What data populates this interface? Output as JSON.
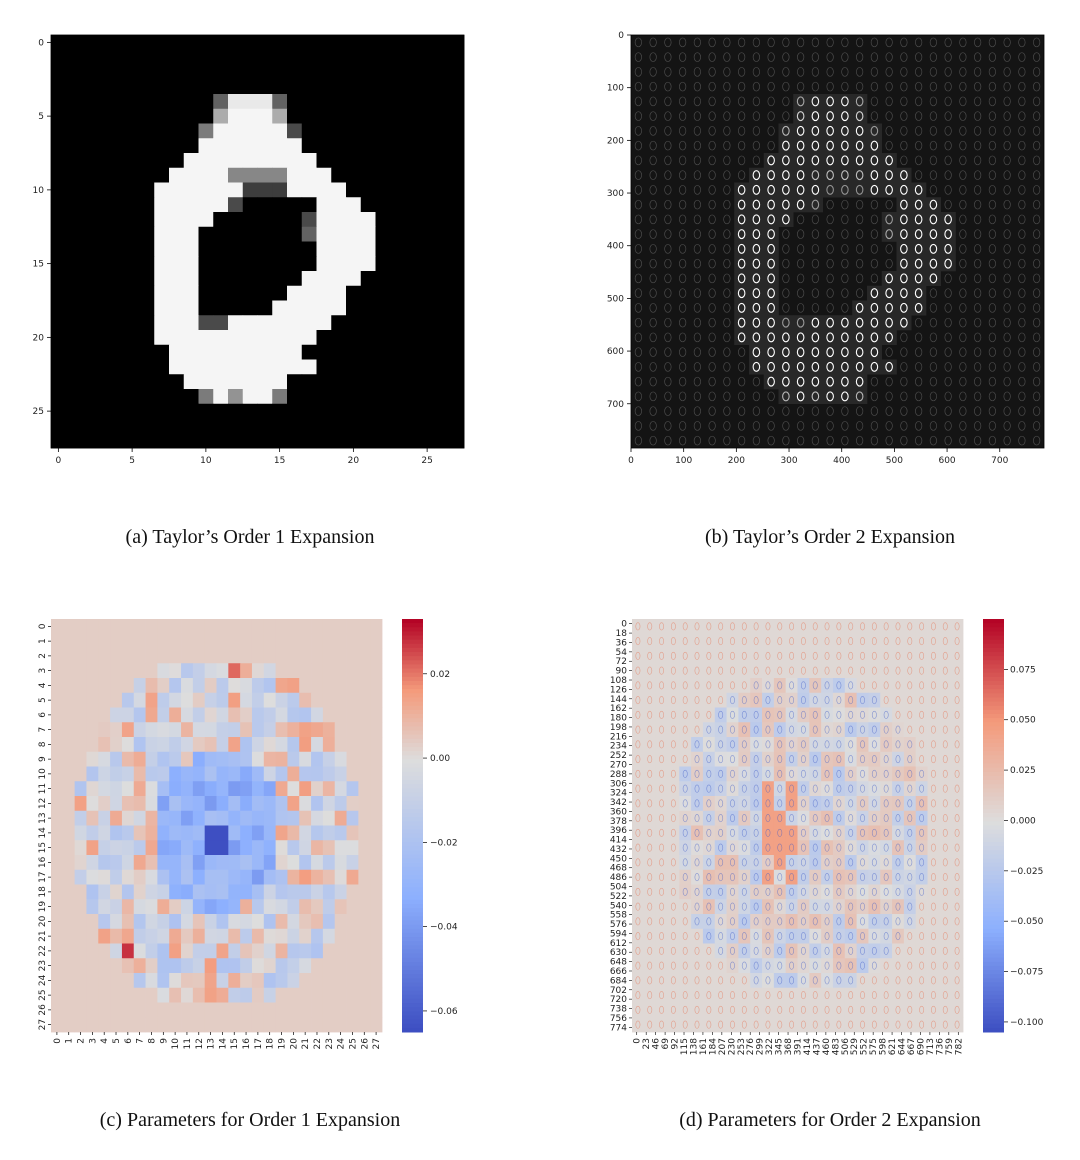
{
  "captions": {
    "a": "(a) Taylor’s Order 1 Expansion",
    "b": "(b) Taylor’s Order 2 Expansion",
    "c": "(c) Parameters for Order 1 Expansion",
    "d": "(d) Parameters for Order 2 Expansion"
  },
  "chart_data": [
    {
      "id": "a",
      "type": "heatmap",
      "colormap": "gray",
      "grid": false,
      "xlim": [
        -0.5,
        27.5
      ],
      "ylim": [
        27.5,
        -0.5
      ],
      "xticks": [
        "0",
        "5",
        "10",
        "15",
        "20",
        "25"
      ],
      "yticks": [
        "0",
        "5",
        "10",
        "15",
        "20",
        "25"
      ],
      "rows": 28,
      "cols": 28,
      "pixels": [
        [
          4,
          11,
          14,
          0.4
        ],
        [
          4,
          12,
          15,
          0.95
        ],
        [
          4,
          13,
          15,
          0.95
        ],
        [
          4,
          14,
          15,
          0.95
        ],
        [
          4,
          15,
          16,
          0.4
        ],
        [
          5,
          11,
          12,
          0.7
        ],
        [
          5,
          12,
          15,
          1
        ],
        [
          5,
          15,
          16,
          0.7
        ],
        [
          6,
          10,
          11,
          0.5
        ],
        [
          6,
          11,
          16,
          1
        ],
        [
          6,
          16,
          17,
          0.3
        ],
        [
          7,
          10,
          17,
          1
        ],
        [
          8,
          9,
          18,
          1
        ],
        [
          9,
          8,
          19,
          1
        ],
        [
          9,
          12,
          16,
          0.55
        ],
        [
          10,
          7,
          13,
          1
        ],
        [
          10,
          13,
          16,
          0.25
        ],
        [
          10,
          16,
          20,
          1
        ],
        [
          11,
          7,
          12,
          1
        ],
        [
          11,
          12,
          13,
          0.3
        ],
        [
          11,
          13,
          18,
          0
        ],
        [
          11,
          18,
          21,
          1
        ],
        [
          12,
          7,
          11,
          1
        ],
        [
          12,
          11,
          17,
          0
        ],
        [
          12,
          17,
          18,
          0.3
        ],
        [
          12,
          18,
          22,
          1
        ],
        [
          13,
          7,
          10,
          1
        ],
        [
          13,
          10,
          17,
          0
        ],
        [
          13,
          17,
          18,
          0.4
        ],
        [
          13,
          18,
          22,
          1
        ],
        [
          14,
          7,
          10,
          1
        ],
        [
          14,
          10,
          18,
          0
        ],
        [
          14,
          18,
          22,
          1
        ],
        [
          15,
          7,
          10,
          1
        ],
        [
          15,
          10,
          18,
          0
        ],
        [
          15,
          18,
          22,
          1
        ],
        [
          16,
          7,
          10,
          1
        ],
        [
          16,
          10,
          17,
          0
        ],
        [
          16,
          17,
          21,
          1
        ],
        [
          17,
          7,
          10,
          1
        ],
        [
          17,
          10,
          16,
          0
        ],
        [
          17,
          16,
          20,
          1
        ],
        [
          18,
          7,
          10,
          1
        ],
        [
          18,
          10,
          15,
          0
        ],
        [
          18,
          15,
          20,
          1
        ],
        [
          19,
          7,
          10,
          1
        ],
        [
          19,
          10,
          12,
          0.3
        ],
        [
          19,
          12,
          19,
          1
        ],
        [
          20,
          7,
          18,
          1
        ],
        [
          21,
          8,
          17,
          1
        ],
        [
          22,
          8,
          18,
          1
        ],
        [
          23,
          9,
          16,
          1
        ],
        [
          24,
          10,
          11,
          0.5
        ],
        [
          24,
          11,
          12,
          1
        ],
        [
          24,
          12,
          13,
          0.6
        ],
        [
          24,
          13,
          15,
          1
        ],
        [
          24,
          15,
          16,
          0.5
        ]
      ]
    },
    {
      "id": "b",
      "type": "heatmap",
      "colormap": "gray",
      "grid": false,
      "xlim": [
        0,
        784
      ],
      "ylim": [
        784,
        0
      ],
      "xticks": [
        "0",
        "100",
        "200",
        "300",
        "400",
        "500",
        "600",
        "700"
      ],
      "yticks": [
        "0",
        "100",
        "200",
        "300",
        "400",
        "500",
        "600",
        "700"
      ],
      "rows": 28,
      "cols": 28
    },
    {
      "id": "c",
      "type": "heatmap",
      "colormap": "coolwarm",
      "grid": false,
      "rows": 28,
      "cols": 28,
      "vmin": -0.065,
      "vmax": 0.033,
      "xticks": [
        "0",
        "1",
        "2",
        "3",
        "4",
        "5",
        "6",
        "7",
        "8",
        "9",
        "10",
        "11",
        "12",
        "13",
        "14",
        "15",
        "16",
        "17",
        "18",
        "19",
        "20",
        "21",
        "22",
        "23",
        "24",
        "25",
        "26",
        "27"
      ],
      "yticks": [
        "0",
        "1",
        "2",
        "3",
        "4",
        "5",
        "6",
        "7",
        "8",
        "9",
        "10",
        "11",
        "12",
        "13",
        "14",
        "15",
        "16",
        "17",
        "18",
        "19",
        "20",
        "21",
        "22",
        "23",
        "24",
        "25",
        "26",
        "27"
      ],
      "colorbar": {
        "ticks": [
          0.02,
          0.0,
          -0.02,
          -0.04,
          -0.06
        ],
        "labels": [
          "0.02",
          "0.00",
          "−0.02",
          "−0.04",
          "−0.06"
        ],
        "range": [
          -0.065,
          0.033
        ]
      }
    },
    {
      "id": "d",
      "type": "heatmap",
      "colormap": "coolwarm",
      "grid": false,
      "rows": 28,
      "cols": 28,
      "vmin": -0.105,
      "vmax": 0.1,
      "xticks": [
        "0",
        "23",
        "46",
        "69",
        "92",
        "115",
        "138",
        "161",
        "184",
        "207",
        "230",
        "253",
        "276",
        "299",
        "322",
        "345",
        "368",
        "391",
        "414",
        "437",
        "460",
        "483",
        "506",
        "529",
        "552",
        "575",
        "598",
        "621",
        "644",
        "667",
        "690",
        "713",
        "736",
        "759",
        "782"
      ],
      "yticks": [
        "0",
        "18",
        "36",
        "54",
        "72",
        "90",
        "108",
        "126",
        "144",
        "162",
        "180",
        "198",
        "216",
        "234",
        "252",
        "270",
        "288",
        "306",
        "324",
        "342",
        "360",
        "378",
        "396",
        "414",
        "432",
        "450",
        "468",
        "486",
        "504",
        "522",
        "540",
        "558",
        "576",
        "594",
        "612",
        "630",
        "648",
        "666",
        "684",
        "702",
        "720",
        "738",
        "756",
        "774"
      ],
      "colorbar": {
        "ticks": [
          0.075,
          0.05,
          0.025,
          0.0,
          -0.025,
          -0.05,
          -0.075,
          -0.1
        ],
        "labels": [
          "0.075",
          "0.050",
          "0.025",
          "0.000",
          "−0.025",
          "−0.050",
          "−0.075",
          "−0.100"
        ],
        "range": [
          -0.105,
          0.1
        ]
      }
    }
  ]
}
